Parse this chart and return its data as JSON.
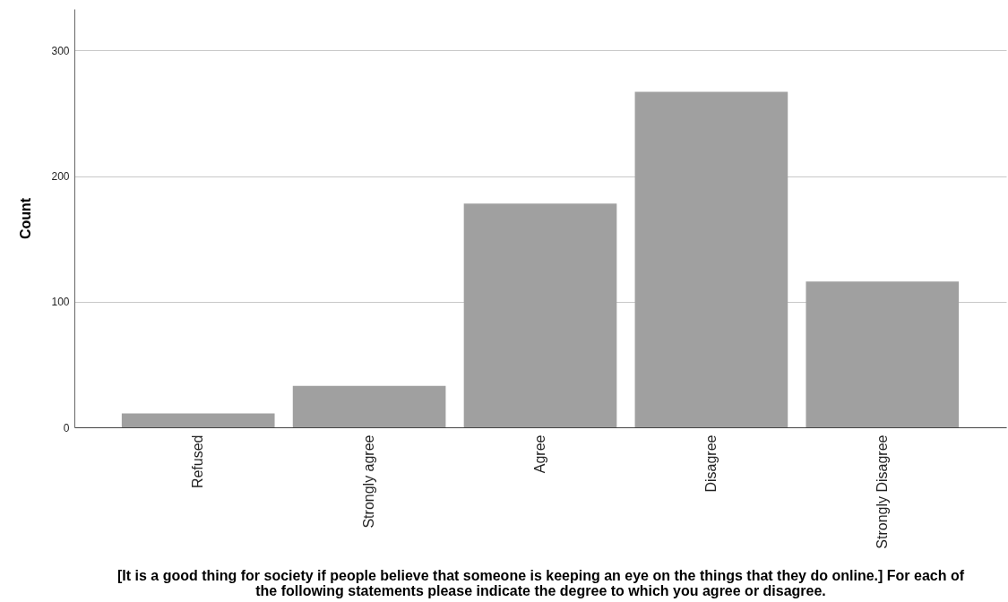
{
  "chart_data": {
    "type": "bar",
    "xlabel": "[It is a good thing for society if people believe that someone is keeping an eye on the things that they do online.] For each of the following statements please indicate the degree to which you agree or disagree.",
    "ylabel": "Count",
    "categories": [
      "Refused",
      "Strongly agree",
      "Agree",
      "Disagree",
      "Strongly Disagree"
    ],
    "values": [
      11,
      33,
      178,
      267,
      116
    ],
    "color": "#a0a0a0",
    "ylim": [
      0,
      333
    ],
    "yticks": [
      0,
      100,
      200,
      300
    ],
    "grid": "y"
  }
}
